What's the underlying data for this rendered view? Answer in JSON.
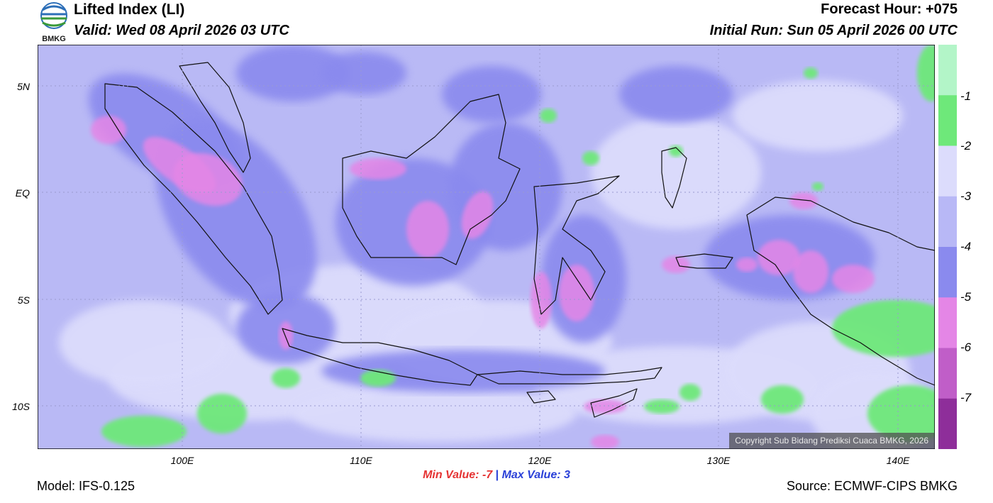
{
  "header": {
    "title": "Lifted Index (LI)",
    "valid": "Valid: Wed 08 April 2026 03 UTC",
    "forecast_hour": "Forecast Hour: +075",
    "initial_run": "Initial Run: Sun 05 April 2026 00 UTC",
    "logo_text": "BMKG"
  },
  "map": {
    "lat_labels": [
      "5N",
      "EQ",
      "5S",
      "10S"
    ],
    "lon_labels": [
      "100E",
      "110E",
      "120E",
      "130E",
      "140E"
    ],
    "copyright": "Copyright Sub Bidang Prediksi Cuaca BMKG, 2026"
  },
  "colorbar": {
    "labels": [
      "-1",
      "-2",
      "-3",
      "-4",
      "-5",
      "-6",
      "-7"
    ],
    "colors": [
      "#b3f5c8",
      "#6ee87a",
      "#dcdcfc",
      "#b8b8f6",
      "#8a8aee",
      "#e486e6",
      "#c05ec8",
      "#8e2e9a"
    ]
  },
  "footer": {
    "min_label": "Min Value:",
    "min_value": "-7",
    "separator": "|",
    "max_label": "Max Value:",
    "max_value": "3",
    "model": "Model: IFS-0.125",
    "source": "Source: ECMWF-CIPS BMKG"
  },
  "palette": {
    "background": "#b9b9f5",
    "light": "#dcdcfc",
    "medium": "#8a8aee",
    "pink": "#e486e6",
    "green": "#6ee87a",
    "coast": "#111111",
    "grid": "#9a9ad0"
  }
}
